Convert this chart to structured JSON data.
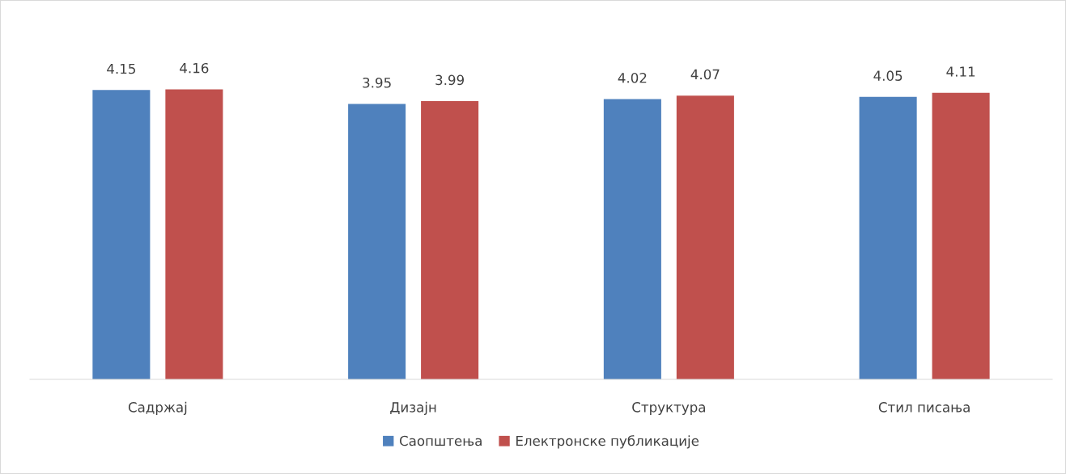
{
  "chart_data": {
    "type": "bar",
    "categories": [
      "Садржај",
      "Дизајн",
      "Структура",
      "Стил писања"
    ],
    "series": [
      {
        "name": "Саопштења",
        "color": "#4f81bd",
        "values": [
          4.15,
          3.95,
          4.02,
          4.05
        ]
      },
      {
        "name": "Електронске публикације",
        "color": "#c0504d",
        "values": [
          4.16,
          3.99,
          4.07,
          4.11
        ]
      }
    ],
    "data_labels": true,
    "legend": "bottom",
    "grid": false
  }
}
